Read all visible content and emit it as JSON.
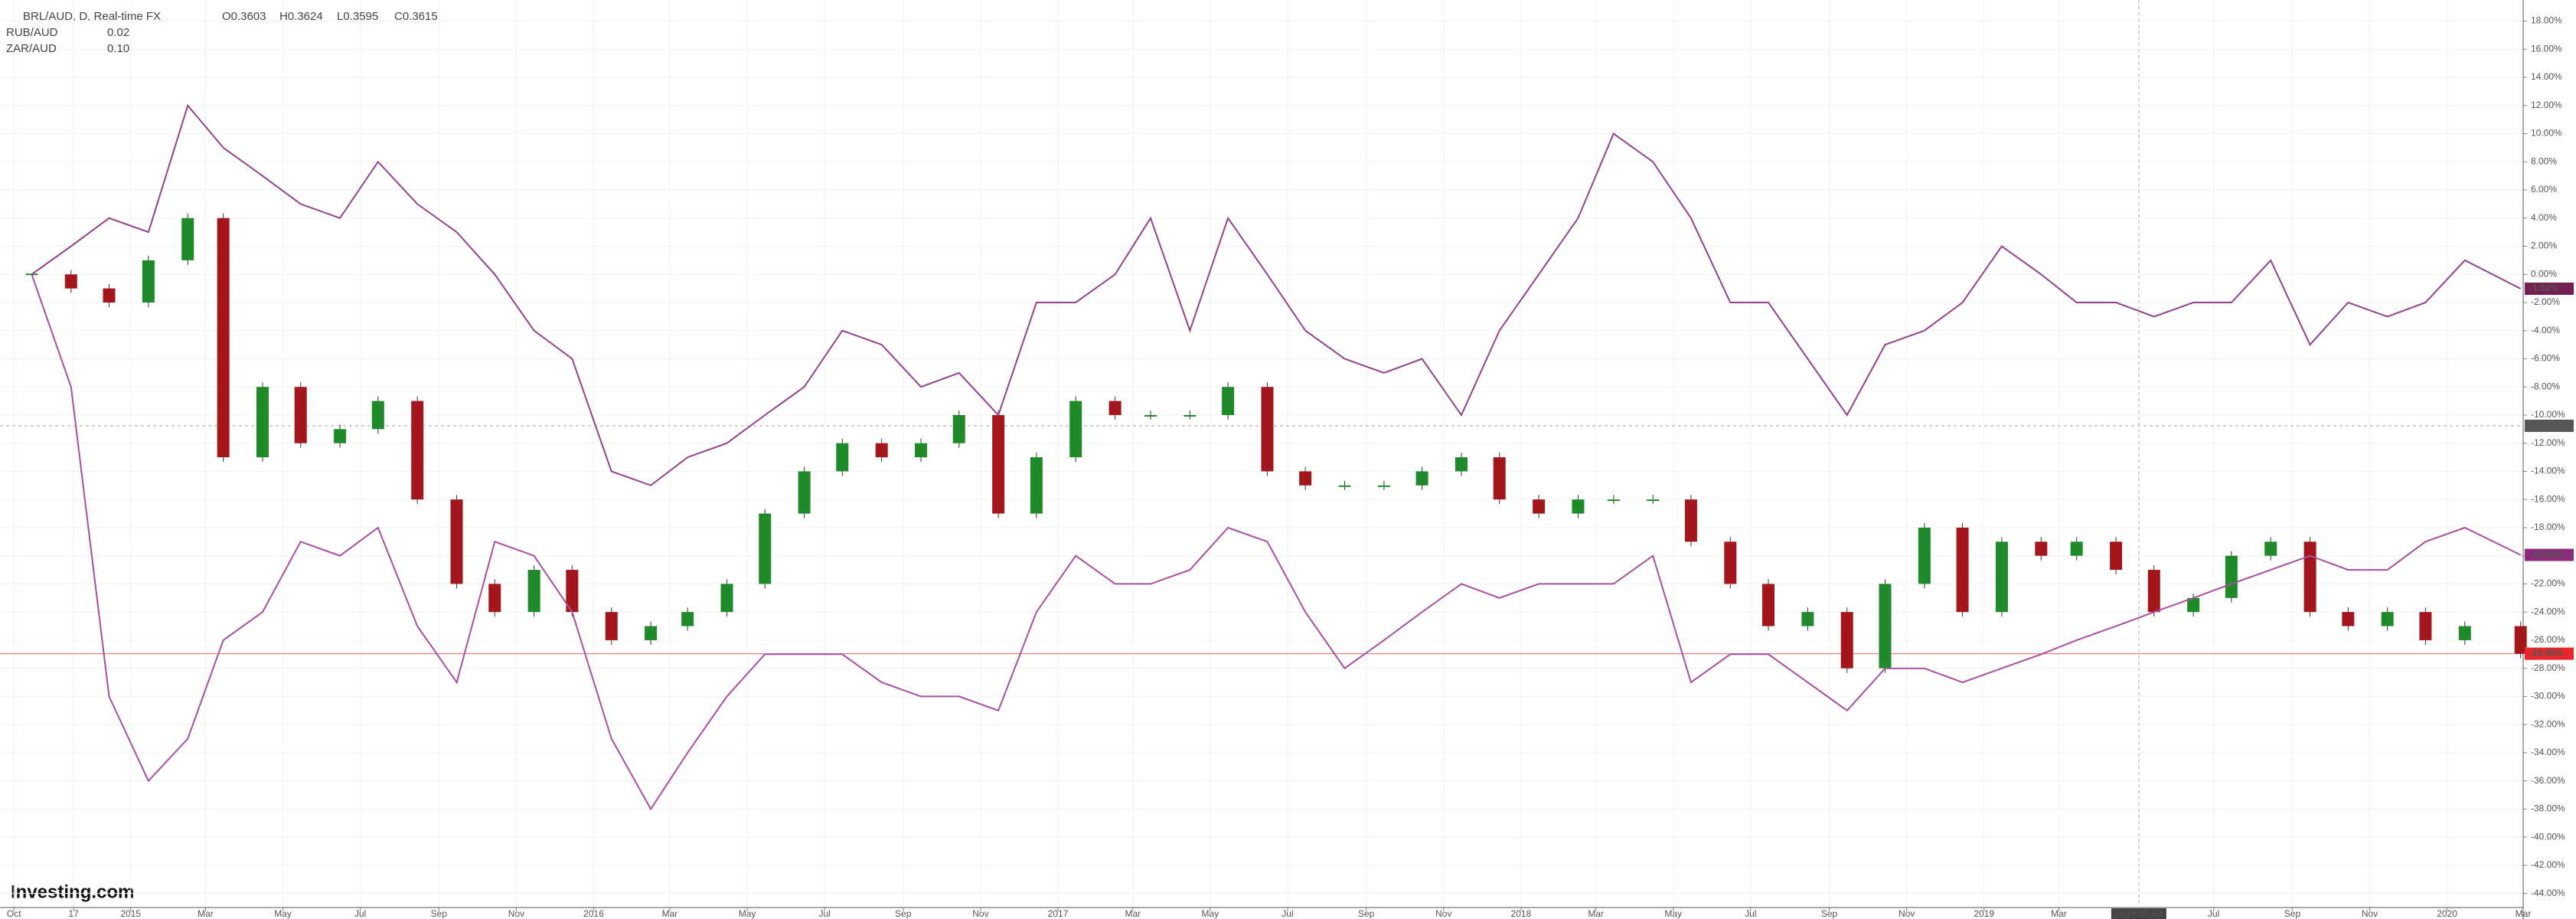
{
  "chart_data": {
    "type": "candlestick",
    "header": {
      "name": "BRL/AUD, D, Real-time FX",
      "ohlc": [
        "O0.3603",
        "H0.3624",
        "L0.3595",
        "C0.3615"
      ]
    },
    "watermark": "Investing.com",
    "x": [
      "2014-10-15",
      "2014-11-15",
      "2014-12-15",
      "2015-01-15",
      "2015-02-15",
      "2015-03-15",
      "2015-04-15",
      "2015-05-15",
      "2015-06-15",
      "2015-07-15",
      "2015-08-15",
      "2015-09-15",
      "2015-10-15",
      "2015-11-15",
      "2015-12-15",
      "2016-01-15",
      "2016-02-15",
      "2016-03-15",
      "2016-04-15",
      "2016-05-15",
      "2016-06-15",
      "2016-07-15",
      "2016-08-15",
      "2016-09-15",
      "2016-10-15",
      "2016-11-15",
      "2016-12-15",
      "2017-01-15",
      "2017-02-15",
      "2017-03-15",
      "2017-04-15",
      "2017-05-15",
      "2017-06-15",
      "2017-07-15",
      "2017-08-15",
      "2017-09-15",
      "2017-10-15",
      "2017-11-15",
      "2017-12-15",
      "2018-01-15",
      "2018-02-15",
      "2018-03-15",
      "2018-04-15",
      "2018-05-15",
      "2018-06-15",
      "2018-07-15",
      "2018-08-15",
      "2018-09-15",
      "2018-10-15",
      "2018-11-15",
      "2018-12-15",
      "2019-01-15",
      "2019-02-15",
      "2019-03-15",
      "2019-04-15",
      "2019-05-15",
      "2019-06-15",
      "2019-07-15",
      "2019-08-15",
      "2019-09-15",
      "2019-10-15",
      "2019-11-15",
      "2019-12-15",
      "2020-01-15",
      "2020-02-28"
    ],
    "series": [
      {
        "name": "BRL/AUD",
        "up_color": "#1f8a2a",
        "down_color": "#a3161b",
        "last_label": "-26.96%",
        "label_color": "#e8262b",
        "values": [
          0,
          -1,
          -2,
          1,
          4,
          -13,
          -8,
          -12,
          -11,
          -9,
          -16,
          -22,
          -24,
          -21,
          -24,
          -26,
          -25,
          -24,
          -22,
          -17,
          -14,
          -12,
          -13,
          -12,
          -10,
          -17,
          -13,
          -9,
          -10,
          -10,
          -10,
          -8,
          -14,
          -15,
          -15,
          -15,
          -14,
          -13,
          -16,
          -17,
          -16,
          -16,
          -16,
          -19,
          -22,
          -25,
          -24,
          -28,
          -22,
          -18,
          -24,
          -19,
          -20,
          -19,
          -21,
          -24,
          -23,
          -20,
          -19,
          -24,
          -25,
          -24,
          -26,
          -25,
          -26.96
        ]
      },
      {
        "name": "RUB/AUD",
        "legend_value": "0.02",
        "color": "#a8509f",
        "last_label": "-19.94%",
        "label_color": "#8c2a7c",
        "values": [
          0,
          -8,
          -30,
          -36,
          -33,
          -26,
          -24,
          -19,
          -20,
          -18,
          -25,
          -29,
          -19,
          -20,
          -24,
          -33,
          -38,
          -34,
          -30,
          -27,
          -27,
          -27,
          -29,
          -30,
          -30,
          -31,
          -24,
          -20,
          -22,
          -22,
          -21,
          -18,
          -19,
          -24,
          -28,
          -26,
          -24,
          -22,
          -23,
          -22,
          -22,
          -22,
          -20,
          -29,
          -27,
          -27,
          -29,
          -31,
          -28,
          -28,
          -29,
          -28,
          -27,
          -26,
          -25,
          -24,
          -23,
          -22,
          -21,
          -20,
          -21,
          -21,
          -19,
          -18,
          -19.94
        ]
      },
      {
        "name": "ZAR/AUD",
        "legend_value": "0.10",
        "color": "#93438c",
        "last_label": "-1.02%",
        "label_color": "#761f52",
        "values": [
          0,
          2,
          4,
          3,
          12,
          9,
          7,
          5,
          4,
          8,
          5,
          3,
          0,
          -4,
          -6,
          -14,
          -15,
          -13,
          -12,
          -10,
          -8,
          -4,
          -5,
          -8,
          -7,
          -10,
          -2,
          -2,
          0,
          4,
          -4,
          4,
          0,
          -4,
          -6,
          -7,
          -6,
          -10,
          -4,
          0,
          4,
          10,
          8,
          4,
          -2,
          -2,
          -6,
          -10,
          -5,
          -4,
          -2,
          2,
          0,
          -2,
          -2,
          -3,
          -2,
          -2,
          1,
          -5,
          -2,
          -3,
          -2,
          1,
          -1.02
        ]
      }
    ],
    "xlim": [
      "2014-09-20",
      "2020-03-01"
    ],
    "xticks": [
      {
        "value": "2014-10-01",
        "label": "Oct"
      },
      {
        "value": "2014-11-17",
        "label": "17"
      },
      {
        "value": "2015-01-01",
        "label": "2015"
      },
      {
        "value": "2015-03-01",
        "label": "Mar"
      },
      {
        "value": "2015-05-01",
        "label": "May"
      },
      {
        "value": "2015-07-01",
        "label": "Jul"
      },
      {
        "value": "2015-09-01",
        "label": "Sep"
      },
      {
        "value": "2015-11-01",
        "label": "Nov"
      },
      {
        "value": "2016-01-01",
        "label": "2016"
      },
      {
        "value": "2016-03-01",
        "label": "Mar"
      },
      {
        "value": "2016-05-01",
        "label": "May"
      },
      {
        "value": "2016-07-01",
        "label": "Jul"
      },
      {
        "value": "2016-09-01",
        "label": "Sep"
      },
      {
        "value": "2016-11-01",
        "label": "Nov"
      },
      {
        "value": "2017-01-01",
        "label": "2017"
      },
      {
        "value": "2017-03-01",
        "label": "Mar"
      },
      {
        "value": "2017-05-01",
        "label": "May"
      },
      {
        "value": "2017-07-01",
        "label": "Jul"
      },
      {
        "value": "2017-09-01",
        "label": "Sep"
      },
      {
        "value": "2017-11-01",
        "label": "Nov"
      },
      {
        "value": "2018-01-01",
        "label": "2018"
      },
      {
        "value": "2018-03-01",
        "label": "Mar"
      },
      {
        "value": "2018-05-01",
        "label": "May"
      },
      {
        "value": "2018-07-01",
        "label": "Jul"
      },
      {
        "value": "2018-09-01",
        "label": "Sep"
      },
      {
        "value": "2018-11-01",
        "label": "Nov"
      },
      {
        "value": "2019-01-01",
        "label": "2019"
      },
      {
        "value": "2019-03-01",
        "label": "Mar"
      },
      {
        "value": "2019-07-01",
        "label": "Jul"
      },
      {
        "value": "2019-09-01",
        "label": "Sep"
      },
      {
        "value": "2019-11-01",
        "label": "Nov"
      },
      {
        "value": "2020-01-01",
        "label": "2020"
      },
      {
        "value": "2020-03-01",
        "label": "Mar"
      }
    ],
    "ylim": [
      -45,
      19.5
    ],
    "yticks": [
      {
        "value": 18,
        "label": "18.00%"
      },
      {
        "value": 16,
        "label": "16.00%"
      },
      {
        "value": 14,
        "label": "14.00%"
      },
      {
        "value": 12,
        "label": "12.00%"
      },
      {
        "value": 10,
        "label": "10.00%"
      },
      {
        "value": 8,
        "label": "8.00%"
      },
      {
        "value": 6,
        "label": "6.00%"
      },
      {
        "value": 4,
        "label": "4.00%"
      },
      {
        "value": 2,
        "label": "2.00%"
      },
      {
        "value": 0,
        "label": "0.00%"
      },
      {
        "value": -2,
        "label": "-2.00%"
      },
      {
        "value": -4,
        "label": "-4.00%"
      },
      {
        "value": -6,
        "label": "-6.00%"
      },
      {
        "value": -8,
        "label": "-8.00%"
      },
      {
        "value": -10,
        "label": "-10.00%"
      },
      {
        "value": -12,
        "label": "-12.00%"
      },
      {
        "value": -14,
        "label": "-14.00%"
      },
      {
        "value": -16,
        "label": "-16.00%"
      },
      {
        "value": -18,
        "label": "-18.00%"
      },
      {
        "value": -20,
        "label": "-20.00%"
      },
      {
        "value": -22,
        "label": "-22.00%"
      },
      {
        "value": -24,
        "label": "-24.00%"
      },
      {
        "value": -26,
        "label": "-26.00%"
      },
      {
        "value": -28,
        "label": "-28.00%"
      },
      {
        "value": -30,
        "label": "-30.00%"
      },
      {
        "value": -32,
        "label": "-32.00%"
      },
      {
        "value": -34,
        "label": "-34.00%"
      },
      {
        "value": -36,
        "label": "-36.00%"
      },
      {
        "value": -38,
        "label": "-38.00%"
      },
      {
        "value": -40,
        "label": "-40.00%"
      },
      {
        "value": -42,
        "label": "-42.00%"
      },
      {
        "value": -44,
        "label": "-44.00%"
      }
    ],
    "crosshair": {
      "x": "2019-05-03",
      "y": -10.7633
    },
    "grid": true
  }
}
